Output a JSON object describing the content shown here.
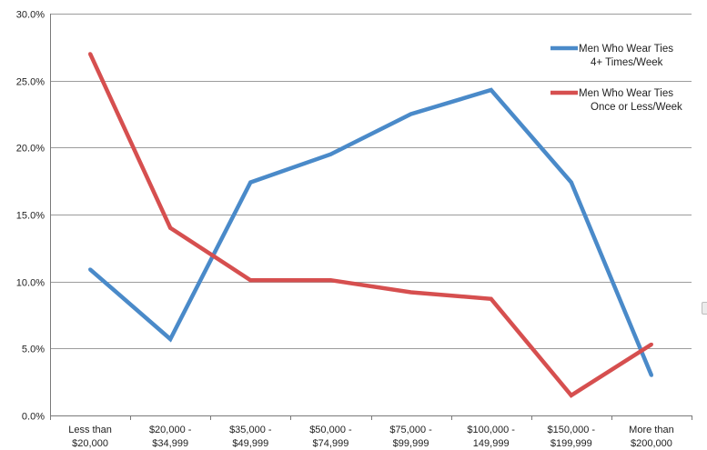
{
  "chart_data": {
    "type": "line",
    "categories": [
      [
        "Less than",
        "$20,000"
      ],
      [
        "$20,000 -",
        "$34,999"
      ],
      [
        "$35,000 -",
        "$49,999"
      ],
      [
        "$50,000 -",
        "$74,999"
      ],
      [
        "$75,000 -",
        "$99,999"
      ],
      [
        "$100,000 -",
        "149,999"
      ],
      [
        "$150,000 -",
        "$199,999"
      ],
      [
        "More than",
        "$200,000"
      ]
    ],
    "series": [
      {
        "name": [
          "Men Who Wear Ties",
          "4+ Times/Week"
        ],
        "color": "#4a8ac9",
        "values": [
          10.9,
          5.7,
          17.4,
          19.5,
          22.5,
          24.3,
          17.4,
          3.0
        ]
      },
      {
        "name": [
          "Men Who Wear Ties",
          "Once or Less/Week"
        ],
        "color": "#d64f4f",
        "values": [
          27.0,
          14.0,
          10.1,
          10.1,
          9.2,
          8.7,
          1.5,
          5.3
        ]
      }
    ],
    "yticks": [
      "0.0%",
      "5.0%",
      "10.0%",
      "15.0%",
      "20.0%",
      "25.0%",
      "30.0%"
    ],
    "ylim": [
      0,
      30
    ],
    "ytick_step": 5,
    "grid": true,
    "legend_position": "top-right",
    "title": "",
    "xlabel": "",
    "ylabel": ""
  }
}
